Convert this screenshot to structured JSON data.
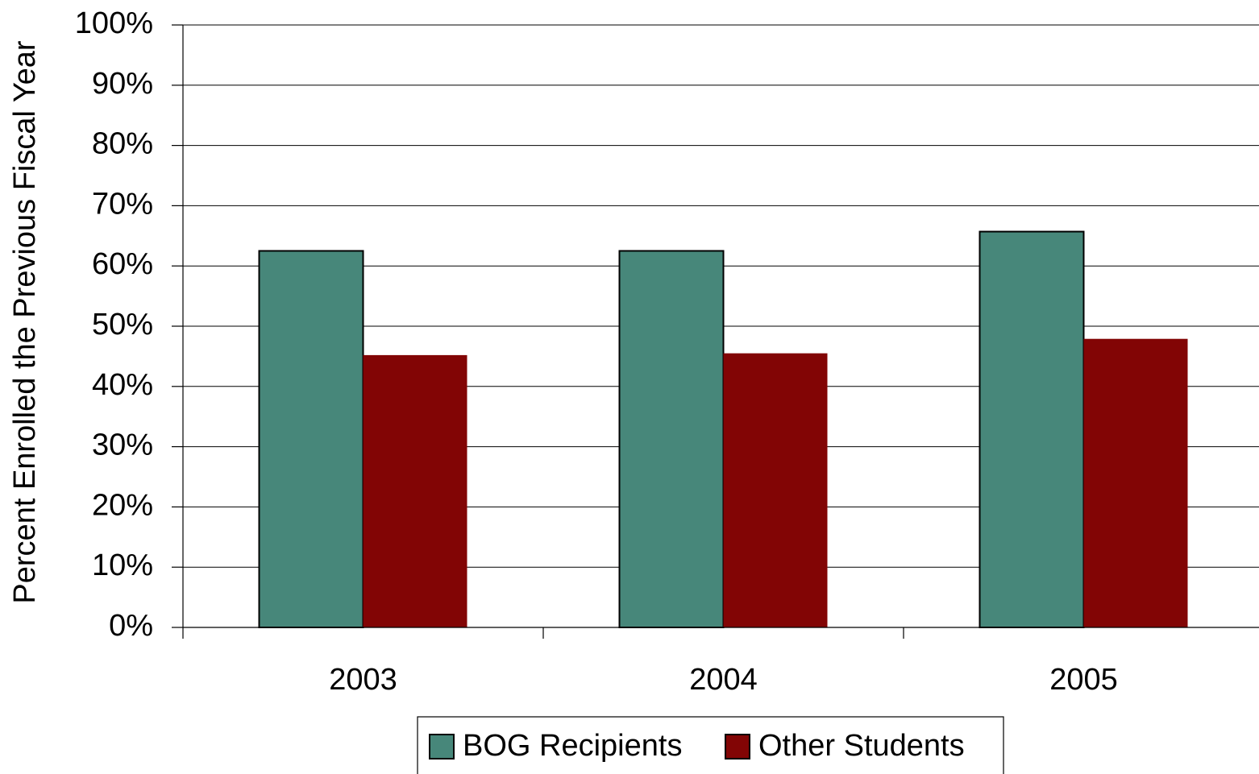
{
  "chart_data": {
    "type": "bar",
    "y_label": "Percent Enrolled the Previous Fiscal Year",
    "categories": [
      "2003",
      "2004",
      "2005"
    ],
    "series": [
      {
        "name": "BOG Recipients",
        "color": "#47877a",
        "values": [
          62.5,
          62.5,
          65.7
        ]
      },
      {
        "name": "Other Students",
        "color": "#820505",
        "values": [
          45.2,
          45.5,
          47.9
        ]
      }
    ],
    "ylim": [
      0,
      100
    ],
    "yticks": [
      {
        "value": 0,
        "label": "0%"
      },
      {
        "value": 10,
        "label": "10%"
      },
      {
        "value": 20,
        "label": "20%"
      },
      {
        "value": 30,
        "label": "30%"
      },
      {
        "value": 40,
        "label": "40%"
      },
      {
        "value": 50,
        "label": "50%"
      },
      {
        "value": 60,
        "label": "60%"
      },
      {
        "value": 70,
        "label": "70%"
      },
      {
        "value": 80,
        "label": "80%"
      },
      {
        "value": 90,
        "label": "90%"
      },
      {
        "value": 100,
        "label": "100%"
      }
    ],
    "grid": true,
    "legend": "bottom"
  }
}
